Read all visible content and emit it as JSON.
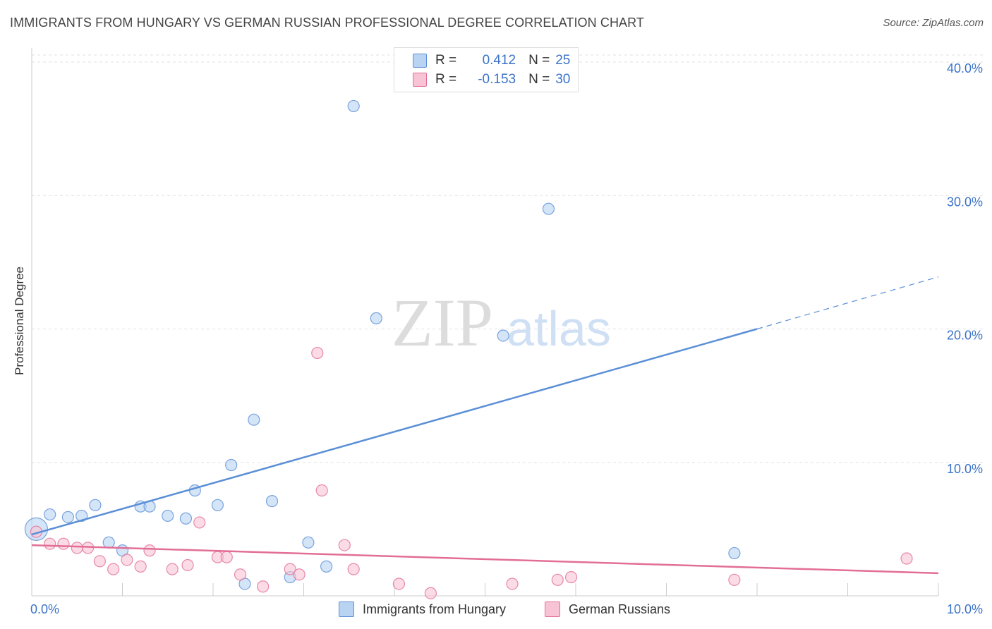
{
  "title": "IMMIGRANTS FROM HUNGARY VS GERMAN RUSSIAN PROFESSIONAL DEGREE CORRELATION CHART",
  "source": "Source: ZipAtlas.com",
  "watermark": {
    "zip": "ZIP",
    "atlas": "atlas"
  },
  "legend": {
    "rows": [
      {
        "r_label": "R =",
        "r_value": "0.412",
        "n_label": "N =",
        "n_value": "25"
      },
      {
        "r_label": "R =",
        "r_value": "-0.153",
        "n_label": "N =",
        "n_value": "30"
      }
    ]
  },
  "chart_data": {
    "type": "scatter",
    "title": "IMMIGRANTS FROM HUNGARY VS GERMAN RUSSIAN PROFESSIONAL DEGREE CORRELATION CHART",
    "xlabel": "",
    "ylabel": "Professional Degree",
    "xlim": [
      0,
      10
    ],
    "ylim": [
      0,
      40
    ],
    "x_tick_labels": [
      "0.0%",
      "10.0%"
    ],
    "y_ticks": [
      10,
      20,
      30,
      40
    ],
    "y_tick_labels": [
      "10.0%",
      "20.0%",
      "30.0%",
      "40.0%"
    ],
    "grid": true,
    "series": [
      {
        "name": "Immigrants from Hungary",
        "color": "#5b8fd6",
        "fill": "#b9d3f3",
        "R": 0.412,
        "N": 25,
        "trend": {
          "x0": 0.0,
          "y0": 4.6,
          "x1": 8.0,
          "y1": 20.0,
          "dash_to_x": 10.0,
          "dash_to_y": 23.9
        },
        "points": [
          {
            "x": 0.05,
            "y": 5.0,
            "big": true
          },
          {
            "x": 0.2,
            "y": 6.1
          },
          {
            "x": 0.4,
            "y": 5.9
          },
          {
            "x": 0.55,
            "y": 6.0
          },
          {
            "x": 0.7,
            "y": 6.8
          },
          {
            "x": 0.85,
            "y": 4.0
          },
          {
            "x": 1.0,
            "y": 3.4
          },
          {
            "x": 1.2,
            "y": 6.7
          },
          {
            "x": 1.3,
            "y": 6.7
          },
          {
            "x": 1.5,
            "y": 6.0
          },
          {
            "x": 1.7,
            "y": 5.8
          },
          {
            "x": 1.8,
            "y": 7.9
          },
          {
            "x": 2.05,
            "y": 6.8
          },
          {
            "x": 2.2,
            "y": 9.8
          },
          {
            "x": 2.35,
            "y": 0.9
          },
          {
            "x": 2.45,
            "y": 13.2
          },
          {
            "x": 2.65,
            "y": 7.1
          },
          {
            "x": 2.85,
            "y": 1.4
          },
          {
            "x": 3.05,
            "y": 4.0
          },
          {
            "x": 3.25,
            "y": 2.2
          },
          {
            "x": 3.55,
            "y": 36.7
          },
          {
            "x": 3.8,
            "y": 20.8
          },
          {
            "x": 5.2,
            "y": 19.5
          },
          {
            "x": 5.7,
            "y": 29.0
          },
          {
            "x": 7.75,
            "y": 3.2
          }
        ]
      },
      {
        "name": "German Russians",
        "color": "#e26e96",
        "fill": "#f8c4d5",
        "R": -0.153,
        "N": 30,
        "trend": {
          "x0": 0.0,
          "y0": 3.8,
          "x1": 10.0,
          "y1": 1.7
        },
        "points": [
          {
            "x": 0.05,
            "y": 4.8
          },
          {
            "x": 0.2,
            "y": 3.9
          },
          {
            "x": 0.35,
            "y": 3.9
          },
          {
            "x": 0.5,
            "y": 3.6
          },
          {
            "x": 0.62,
            "y": 3.6
          },
          {
            "x": 0.75,
            "y": 2.6
          },
          {
            "x": 0.9,
            "y": 2.0
          },
          {
            "x": 1.05,
            "y": 2.7
          },
          {
            "x": 1.2,
            "y": 2.2
          },
          {
            "x": 1.3,
            "y": 3.4
          },
          {
            "x": 1.55,
            "y": 2.0
          },
          {
            "x": 1.72,
            "y": 2.3
          },
          {
            "x": 1.85,
            "y": 5.5
          },
          {
            "x": 2.05,
            "y": 2.9
          },
          {
            "x": 2.15,
            "y": 2.9
          },
          {
            "x": 2.3,
            "y": 1.6
          },
          {
            "x": 2.55,
            "y": 0.7
          },
          {
            "x": 2.85,
            "y": 2.0
          },
          {
            "x": 2.95,
            "y": 1.6
          },
          {
            "x": 3.15,
            "y": 18.2
          },
          {
            "x": 3.2,
            "y": 7.9
          },
          {
            "x": 3.45,
            "y": 3.8
          },
          {
            "x": 3.55,
            "y": 2.0
          },
          {
            "x": 4.05,
            "y": 0.9
          },
          {
            "x": 4.4,
            "y": 0.2
          },
          {
            "x": 5.3,
            "y": 0.9
          },
          {
            "x": 5.8,
            "y": 1.2
          },
          {
            "x": 5.95,
            "y": 1.4
          },
          {
            "x": 7.75,
            "y": 1.2
          },
          {
            "x": 9.65,
            "y": 2.8
          }
        ]
      }
    ]
  }
}
